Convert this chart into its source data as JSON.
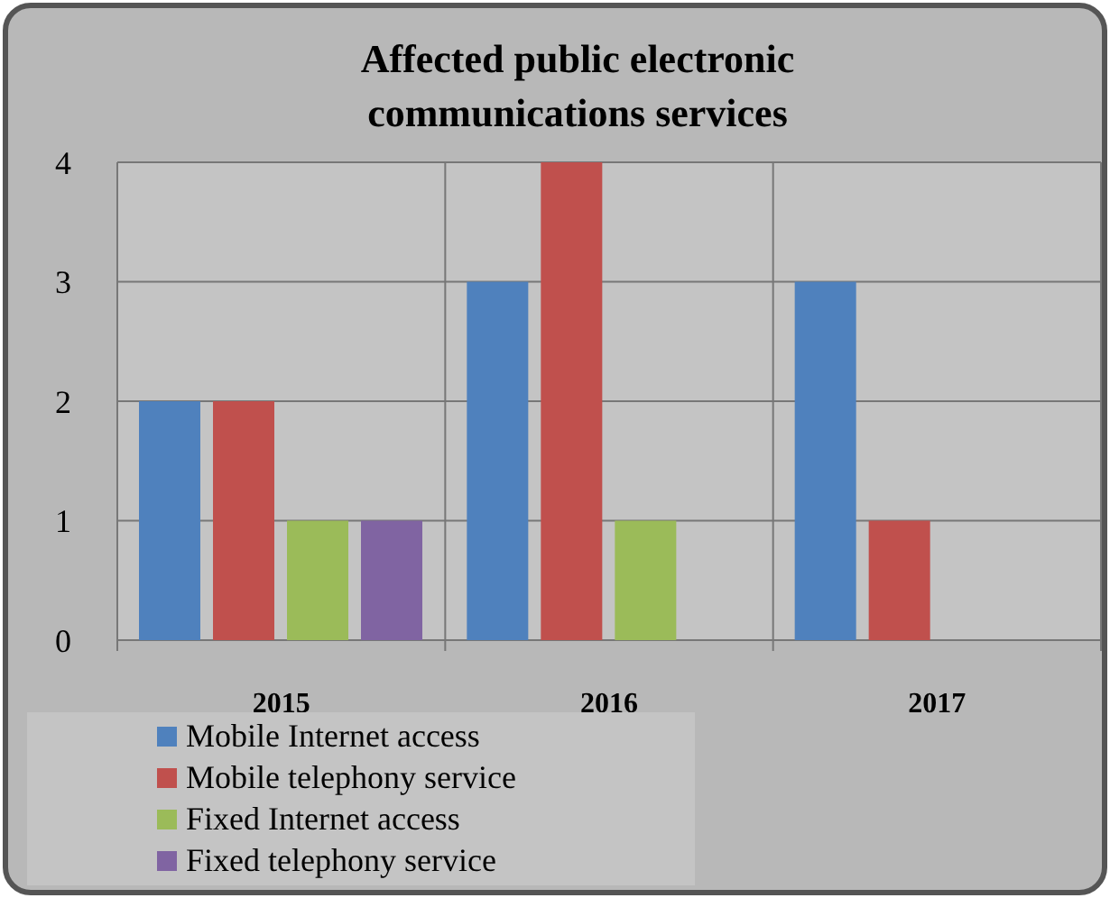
{
  "chart_data": {
    "type": "bar",
    "title": "Affected public electronic communications services",
    "categories": [
      "2015",
      "2016",
      "2017"
    ],
    "series": [
      {
        "name": "Mobile Internet access",
        "color": "#4f81bd",
        "values": [
          2,
          3,
          3
        ]
      },
      {
        "name": "Mobile telephony service",
        "color": "#c0504d",
        "values": [
          2,
          4,
          1
        ]
      },
      {
        "name": "Fixed Internet access",
        "color": "#9bbb59",
        "values": [
          1,
          1,
          0
        ]
      },
      {
        "name": "Fixed telephony service",
        "color": "#8064a2",
        "values": [
          1,
          0,
          0
        ]
      }
    ],
    "ylim": [
      0,
      4
    ],
    "yticks": [
      0,
      1,
      2,
      3,
      4
    ],
    "grid": "y",
    "legend": "bottom left"
  }
}
